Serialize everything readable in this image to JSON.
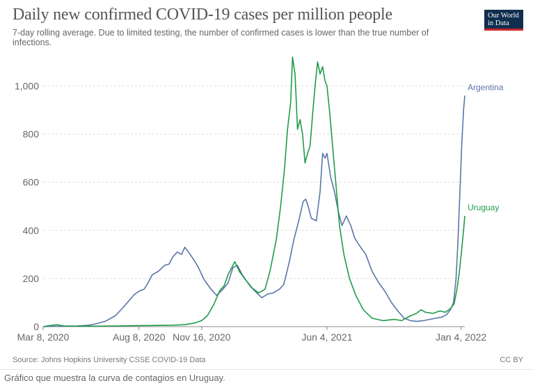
{
  "header": {
    "title": "Daily new confirmed COVID-19 cases per million people",
    "subtitle": "7-day rolling average. Due to limited testing, the number of confirmed cases is lower than the true number of infections.",
    "logo_line1": "Our World",
    "logo_line2": "in Data"
  },
  "footer": {
    "source": "Source: Johns Hopkins University CSSE COVID-19 Data",
    "license": "CC BY"
  },
  "caption": "Gráfico que muestra la curva de contagios en Uruguay.",
  "colors": {
    "argentina": "#5b75a8",
    "uruguay": "#1f9a4a",
    "grid": "#dddddd",
    "axis": "#888888",
    "tick_text": "#666666"
  },
  "chart_data": {
    "type": "line",
    "title": "Daily new confirmed COVID-19 cases per million people",
    "subtitle": "7-day rolling average. Due to limited testing, the number of confirmed cases is lower than the true number of infections.",
    "x_start": "2020-03-08",
    "x_end": "2022-01-10",
    "ylim": [
      0,
      1120
    ],
    "yticks": [
      0,
      200,
      400,
      600,
      800,
      1000
    ],
    "ytick_labels": [
      "0",
      "200",
      "400",
      "600",
      "800",
      "1,000"
    ],
    "xticks": [
      "2020-03-08",
      "2020-08-08",
      "2020-11-16",
      "2021-06-04",
      "2022-01-04"
    ],
    "xtick_labels": [
      "Mar 8, 2020",
      "Aug 8, 2020",
      "Nov 16, 2020",
      "Jun 4, 2021",
      "Jan 4, 2022"
    ],
    "grid": true,
    "legend": "inline-right",
    "series": [
      {
        "name": "Argentina",
        "color": "#5b75a8",
        "points": [
          [
            "2020-03-08",
            0
          ],
          [
            "2020-03-20",
            1
          ],
          [
            "2020-04-10",
            2
          ],
          [
            "2020-05-01",
            3
          ],
          [
            "2020-05-20",
            6
          ],
          [
            "2020-06-01",
            12
          ],
          [
            "2020-06-15",
            22
          ],
          [
            "2020-07-01",
            45
          ],
          [
            "2020-07-12",
            75
          ],
          [
            "2020-07-22",
            105
          ],
          [
            "2020-08-01",
            135
          ],
          [
            "2020-08-10",
            150
          ],
          [
            "2020-08-16",
            155
          ],
          [
            "2020-08-22",
            180
          ],
          [
            "2020-08-29",
            215
          ],
          [
            "2020-09-08",
            230
          ],
          [
            "2020-09-18",
            255
          ],
          [
            "2020-09-25",
            260
          ],
          [
            "2020-10-01",
            290
          ],
          [
            "2020-10-08",
            310
          ],
          [
            "2020-10-15",
            300
          ],
          [
            "2020-10-20",
            330
          ],
          [
            "2020-10-26",
            310
          ],
          [
            "2020-11-03",
            280
          ],
          [
            "2020-11-10",
            250
          ],
          [
            "2020-11-20",
            195
          ],
          [
            "2020-12-01",
            155
          ],
          [
            "2020-12-10",
            130
          ],
          [
            "2020-12-18",
            150
          ],
          [
            "2020-12-28",
            180
          ],
          [
            "2021-01-05",
            245
          ],
          [
            "2021-01-12",
            255
          ],
          [
            "2021-01-20",
            215
          ],
          [
            "2021-02-01",
            170
          ],
          [
            "2021-02-10",
            145
          ],
          [
            "2021-02-20",
            120
          ],
          [
            "2021-03-01",
            135
          ],
          [
            "2021-03-10",
            140
          ],
          [
            "2021-03-20",
            155
          ],
          [
            "2021-03-27",
            175
          ],
          [
            "2021-04-05",
            270
          ],
          [
            "2021-04-12",
            360
          ],
          [
            "2021-04-20",
            440
          ],
          [
            "2021-04-27",
            520
          ],
          [
            "2021-05-01",
            530
          ],
          [
            "2021-05-05",
            500
          ],
          [
            "2021-05-10",
            450
          ],
          [
            "2021-05-18",
            440
          ],
          [
            "2021-05-24",
            560
          ],
          [
            "2021-05-28",
            720
          ],
          [
            "2021-06-01",
            700
          ],
          [
            "2021-06-04",
            720
          ],
          [
            "2021-06-10",
            620
          ],
          [
            "2021-06-16",
            560
          ],
          [
            "2021-06-22",
            480
          ],
          [
            "2021-06-28",
            420
          ],
          [
            "2021-07-05",
            460
          ],
          [
            "2021-07-12",
            420
          ],
          [
            "2021-07-18",
            370
          ],
          [
            "2021-07-25",
            340
          ],
          [
            "2021-08-05",
            300
          ],
          [
            "2021-08-15",
            230
          ],
          [
            "2021-08-25",
            185
          ],
          [
            "2021-09-05",
            145
          ],
          [
            "2021-09-15",
            100
          ],
          [
            "2021-09-25",
            65
          ],
          [
            "2021-10-05",
            35
          ],
          [
            "2021-10-15",
            25
          ],
          [
            "2021-10-25",
            22
          ],
          [
            "2021-11-05",
            25
          ],
          [
            "2021-11-15",
            30
          ],
          [
            "2021-11-25",
            35
          ],
          [
            "2021-12-05",
            40
          ],
          [
            "2021-12-12",
            50
          ],
          [
            "2021-12-18",
            70
          ],
          [
            "2021-12-23",
            100
          ],
          [
            "2021-12-27",
            200
          ],
          [
            "2021-12-30",
            350
          ],
          [
            "2022-01-02",
            550
          ],
          [
            "2022-01-05",
            750
          ],
          [
            "2022-01-08",
            900
          ],
          [
            "2022-01-10",
            960
          ]
        ]
      },
      {
        "name": "Uruguay",
        "color": "#1f9a4a",
        "points": [
          [
            "2020-03-08",
            0
          ],
          [
            "2020-03-20",
            5
          ],
          [
            "2020-03-30",
            8
          ],
          [
            "2020-04-10",
            3
          ],
          [
            "2020-05-01",
            2
          ],
          [
            "2020-06-01",
            2
          ],
          [
            "2020-07-01",
            3
          ],
          [
            "2020-08-01",
            4
          ],
          [
            "2020-09-01",
            5
          ],
          [
            "2020-10-01",
            6
          ],
          [
            "2020-10-20",
            8
          ],
          [
            "2020-11-05",
            15
          ],
          [
            "2020-11-16",
            25
          ],
          [
            "2020-11-25",
            45
          ],
          [
            "2020-12-05",
            90
          ],
          [
            "2020-12-15",
            150
          ],
          [
            "2020-12-22",
            170
          ],
          [
            "2020-12-28",
            215
          ],
          [
            "2021-01-04",
            250
          ],
          [
            "2021-01-08",
            270
          ],
          [
            "2021-01-15",
            230
          ],
          [
            "2021-01-25",
            195
          ],
          [
            "2021-02-05",
            160
          ],
          [
            "2021-02-15",
            140
          ],
          [
            "2021-02-25",
            155
          ],
          [
            "2021-03-05",
            230
          ],
          [
            "2021-03-15",
            360
          ],
          [
            "2021-03-22",
            500
          ],
          [
            "2021-03-28",
            650
          ],
          [
            "2021-04-02",
            820
          ],
          [
            "2021-04-07",
            930
          ],
          [
            "2021-04-10",
            1120
          ],
          [
            "2021-04-14",
            1050
          ],
          [
            "2021-04-18",
            820
          ],
          [
            "2021-04-22",
            860
          ],
          [
            "2021-04-26",
            800
          ],
          [
            "2021-04-30",
            680
          ],
          [
            "2021-05-04",
            720
          ],
          [
            "2021-05-08",
            750
          ],
          [
            "2021-05-12",
            880
          ],
          [
            "2021-05-16",
            1000
          ],
          [
            "2021-05-20",
            1100
          ],
          [
            "2021-05-24",
            1050
          ],
          [
            "2021-05-28",
            1080
          ],
          [
            "2021-06-01",
            1020
          ],
          [
            "2021-06-04",
            1000
          ],
          [
            "2021-06-08",
            900
          ],
          [
            "2021-06-12",
            780
          ],
          [
            "2021-06-18",
            600
          ],
          [
            "2021-06-24",
            420
          ],
          [
            "2021-07-01",
            300
          ],
          [
            "2021-07-10",
            200
          ],
          [
            "2021-07-20",
            130
          ],
          [
            "2021-08-01",
            70
          ],
          [
            "2021-08-15",
            35
          ],
          [
            "2021-09-01",
            25
          ],
          [
            "2021-09-20",
            30
          ],
          [
            "2021-10-01",
            25
          ],
          [
            "2021-10-15",
            45
          ],
          [
            "2021-10-25",
            55
          ],
          [
            "2021-11-01",
            70
          ],
          [
            "2021-11-08",
            60
          ],
          [
            "2021-11-20",
            55
          ],
          [
            "2021-12-01",
            65
          ],
          [
            "2021-12-10",
            60
          ],
          [
            "2021-12-18",
            75
          ],
          [
            "2021-12-24",
            95
          ],
          [
            "2021-12-28",
            150
          ],
          [
            "2022-01-01",
            220
          ],
          [
            "2022-01-05",
            320
          ],
          [
            "2022-01-08",
            400
          ],
          [
            "2022-01-10",
            460
          ]
        ]
      }
    ]
  }
}
